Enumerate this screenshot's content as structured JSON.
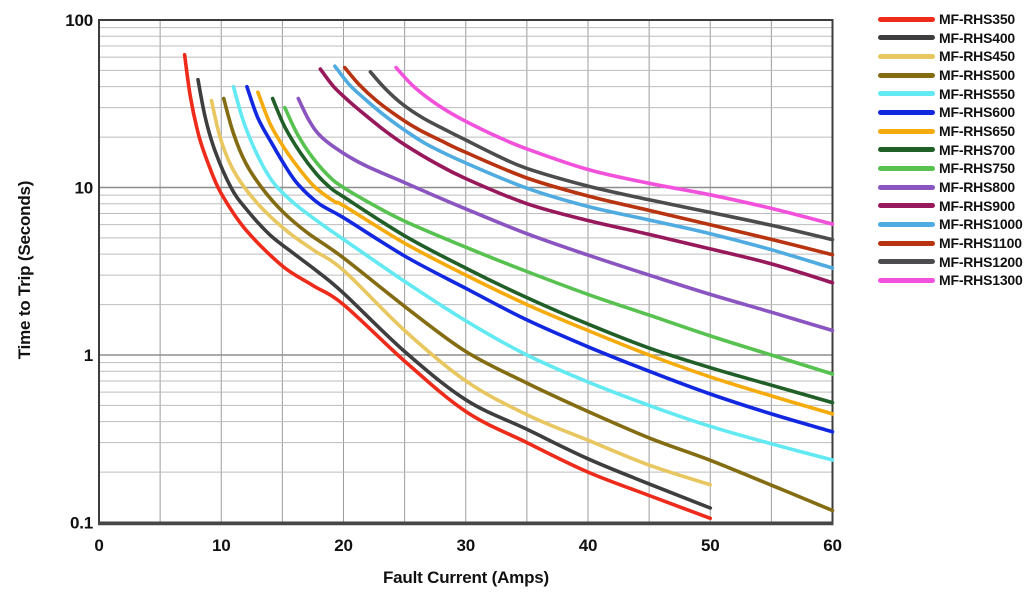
{
  "figure": {
    "background": "#ffffff",
    "text_color": "#111111",
    "grid_minor_color": "#bdbdbd",
    "grid_major_color": "#8d8d8d",
    "grid_vertical_color": "#9d9d9d",
    "border_color": "#3c3c3c",
    "bottom_axis_color": "#474747"
  },
  "chart_data": {
    "type": "line",
    "title": "",
    "xlabel": "Fault Current (Amps)",
    "ylabel": "Time to Trip (Seconds)",
    "x_scale": "linear",
    "y_scale": "log",
    "xlim": [
      0,
      60
    ],
    "ylim": [
      0.1,
      100
    ],
    "x_major_ticks": [
      0,
      10,
      20,
      30,
      40,
      50,
      60
    ],
    "x_minor_grid_step": 5,
    "y_major_ticks": [
      0.1,
      1,
      10,
      100
    ],
    "grid": "on",
    "legend_position": "right",
    "series": [
      {
        "name": "MF-RHS350",
        "color": "#ee2b1a",
        "points": [
          [
            7,
            62
          ],
          [
            7.5,
            34
          ],
          [
            8.2,
            20
          ],
          [
            9,
            13.5
          ],
          [
            10,
            9.2
          ],
          [
            12,
            5.6
          ],
          [
            15,
            3.4
          ],
          [
            17.5,
            2.6
          ],
          [
            20,
            2.0
          ],
          [
            25,
            0.92
          ],
          [
            30,
            0.46
          ],
          [
            35,
            0.3
          ],
          [
            40,
            0.2
          ],
          [
            45,
            0.145
          ],
          [
            50,
            0.106
          ]
        ]
      },
      {
        "name": "MF-RHS400",
        "color": "#3e3e40",
        "points": [
          [
            8.1,
            44
          ],
          [
            8.7,
            26
          ],
          [
            9.5,
            16.5
          ],
          [
            10.8,
            10
          ],
          [
            12,
            7.5
          ],
          [
            14,
            5.2
          ],
          [
            16,
            4.0
          ],
          [
            18,
            3.1
          ],
          [
            20,
            2.34
          ],
          [
            25,
            1.05
          ],
          [
            30,
            0.54
          ],
          [
            35,
            0.36
          ],
          [
            40,
            0.24
          ],
          [
            45,
            0.17
          ],
          [
            50,
            0.122
          ]
        ]
      },
      {
        "name": "MF-RHS450",
        "color": "#e9c760",
        "points": [
          [
            9.2,
            33
          ],
          [
            9.9,
            20
          ],
          [
            10.8,
            13.5
          ],
          [
            11.9,
            10
          ],
          [
            13.5,
            7.3
          ],
          [
            15.5,
            5.4
          ],
          [
            17.5,
            4.25
          ],
          [
            20,
            3.2
          ],
          [
            25,
            1.4
          ],
          [
            30,
            0.7
          ],
          [
            35,
            0.44
          ],
          [
            40,
            0.31
          ],
          [
            45,
            0.22
          ],
          [
            50,
            0.168
          ]
        ]
      },
      {
        "name": "MF-RHS500",
        "color": "#836c11",
        "points": [
          [
            10.2,
            34
          ],
          [
            11,
            21
          ],
          [
            12,
            14
          ],
          [
            13.3,
            10
          ],
          [
            15,
            7.2
          ],
          [
            17,
            5.4
          ],
          [
            20,
            3.8
          ],
          [
            25,
            1.95
          ],
          [
            30,
            1.05
          ],
          [
            35,
            0.68
          ],
          [
            40,
            0.46
          ],
          [
            45,
            0.32
          ],
          [
            50,
            0.235
          ],
          [
            55,
            0.167
          ],
          [
            60,
            0.118
          ]
        ]
      },
      {
        "name": "MF-RHS550",
        "color": "#62e9f2",
        "points": [
          [
            11,
            40
          ],
          [
            11.8,
            25
          ],
          [
            12.8,
            16.5
          ],
          [
            13.8,
            12
          ],
          [
            14.6,
            10
          ],
          [
            16,
            8.0
          ],
          [
            18,
            6.2
          ],
          [
            20,
            4.9
          ],
          [
            25,
            2.75
          ],
          [
            30,
            1.6
          ],
          [
            35,
            1.0
          ],
          [
            40,
            0.69
          ],
          [
            45,
            0.5
          ],
          [
            50,
            0.375
          ],
          [
            55,
            0.295
          ],
          [
            60,
            0.236
          ]
        ]
      },
      {
        "name": "MF-RHS600",
        "color": "#1128e0",
        "points": [
          [
            12.1,
            40
          ],
          [
            13,
            26
          ],
          [
            14.2,
            18
          ],
          [
            15.3,
            13.2
          ],
          [
            16.3,
            10.4
          ],
          [
            18,
            8.0
          ],
          [
            20,
            6.6
          ],
          [
            25,
            3.9
          ],
          [
            30,
            2.5
          ],
          [
            35,
            1.62
          ],
          [
            40,
            1.12
          ],
          [
            45,
            0.8
          ],
          [
            50,
            0.585
          ],
          [
            55,
            0.445
          ],
          [
            60,
            0.348
          ]
        ]
      },
      {
        "name": "MF-RHS650",
        "color": "#f6ab0c",
        "points": [
          [
            13,
            37
          ],
          [
            14,
            24
          ],
          [
            15.2,
            17
          ],
          [
            16.5,
            12.6
          ],
          [
            17.7,
            10
          ],
          [
            19.3,
            8.2
          ],
          [
            20,
            7.8
          ],
          [
            25,
            4.65
          ],
          [
            30,
            3.0
          ],
          [
            35,
            2.0
          ],
          [
            40,
            1.4
          ],
          [
            45,
            1.0
          ],
          [
            50,
            0.74
          ],
          [
            55,
            0.57
          ],
          [
            60,
            0.445
          ]
        ]
      },
      {
        "name": "MF-RHS700",
        "color": "#215f28",
        "points": [
          [
            14.2,
            34
          ],
          [
            15.2,
            23
          ],
          [
            16.5,
            16
          ],
          [
            17.8,
            12
          ],
          [
            18.9,
            10
          ],
          [
            20,
            8.8
          ],
          [
            25,
            5.15
          ],
          [
            30,
            3.3
          ],
          [
            35,
            2.2
          ],
          [
            40,
            1.53
          ],
          [
            45,
            1.1
          ],
          [
            50,
            0.84
          ],
          [
            55,
            0.66
          ],
          [
            60,
            0.52
          ]
        ]
      },
      {
        "name": "MF-RHS750",
        "color": "#57c24f",
        "points": [
          [
            15.2,
            30
          ],
          [
            16.2,
            21
          ],
          [
            17.5,
            15
          ],
          [
            19,
            11.3
          ],
          [
            20,
            10
          ],
          [
            22,
            8.2
          ],
          [
            25,
            6.3
          ],
          [
            30,
            4.4
          ],
          [
            35,
            3.15
          ],
          [
            40,
            2.3
          ],
          [
            45,
            1.73
          ],
          [
            50,
            1.3
          ],
          [
            55,
            1.0
          ],
          [
            60,
            0.77
          ]
        ]
      },
      {
        "name": "MF-RHS800",
        "color": "#8a55c0",
        "points": [
          [
            16.3,
            34
          ],
          [
            17.2,
            25
          ],
          [
            18.2,
            20
          ],
          [
            20,
            16
          ],
          [
            22,
            13.3
          ],
          [
            25,
            10.7
          ],
          [
            27.5,
            8.9
          ],
          [
            30,
            7.45
          ],
          [
            35,
            5.3
          ],
          [
            40,
            3.95
          ],
          [
            45,
            3.0
          ],
          [
            50,
            2.3
          ],
          [
            55,
            1.8
          ],
          [
            60,
            1.4
          ]
        ]
      },
      {
        "name": "MF-RHS900",
        "color": "#97195c",
        "points": [
          [
            18.1,
            51
          ],
          [
            19.2,
            40
          ],
          [
            20.5,
            32.5
          ],
          [
            21.8,
            27
          ],
          [
            23.5,
            21.5
          ],
          [
            25,
            18
          ],
          [
            27.5,
            14
          ],
          [
            30,
            11.3
          ],
          [
            35,
            8.0
          ],
          [
            40,
            6.35
          ],
          [
            45,
            5.25
          ],
          [
            50,
            4.3
          ],
          [
            55,
            3.5
          ],
          [
            60,
            2.7
          ]
        ]
      },
      {
        "name": "MF-RHS1000",
        "color": "#4fabe0",
        "points": [
          [
            19.3,
            53
          ],
          [
            20.5,
            41
          ],
          [
            21.8,
            33.5
          ],
          [
            23.2,
            27.5
          ],
          [
            25,
            22
          ],
          [
            27,
            17.8
          ],
          [
            30,
            14
          ],
          [
            35,
            9.9
          ],
          [
            40,
            7.7
          ],
          [
            45,
            6.4
          ],
          [
            50,
            5.3
          ],
          [
            55,
            4.25
          ],
          [
            60,
            3.3
          ]
        ]
      },
      {
        "name": "MF-RHS1100",
        "color": "#b8330f",
        "points": [
          [
            20.1,
            52
          ],
          [
            21.3,
            41
          ],
          [
            22.7,
            33
          ],
          [
            24.3,
            27
          ],
          [
            26,
            22.5
          ],
          [
            28,
            19
          ],
          [
            30,
            16.2
          ],
          [
            35,
            11.4
          ],
          [
            40,
            8.9
          ],
          [
            45,
            7.3
          ],
          [
            50,
            6.0
          ],
          [
            55,
            4.9
          ],
          [
            60,
            3.97
          ]
        ]
      },
      {
        "name": "MF-RHS1200",
        "color": "#4c4c4e",
        "points": [
          [
            22.2,
            49
          ],
          [
            23.4,
            39
          ],
          [
            24.8,
            31.5
          ],
          [
            26.5,
            26
          ],
          [
            28.5,
            21.8
          ],
          [
            30,
            19.2
          ],
          [
            32.5,
            15.6
          ],
          [
            35,
            13.0
          ],
          [
            40,
            10.2
          ],
          [
            45,
            8.45
          ],
          [
            50,
            7.1
          ],
          [
            55,
            5.95
          ],
          [
            60,
            4.88
          ]
        ]
      },
      {
        "name": "MF-RHS1300",
        "color": "#f251dc",
        "points": [
          [
            24.3,
            52
          ],
          [
            25.6,
            41
          ],
          [
            27.2,
            33
          ],
          [
            29,
            27.2
          ],
          [
            31,
            22.8
          ],
          [
            33,
            19.5
          ],
          [
            35,
            17.0
          ],
          [
            40,
            12.8
          ],
          [
            45,
            10.6
          ],
          [
            50,
            9.05
          ],
          [
            55,
            7.5
          ],
          [
            60,
            6.05
          ]
        ]
      }
    ]
  }
}
